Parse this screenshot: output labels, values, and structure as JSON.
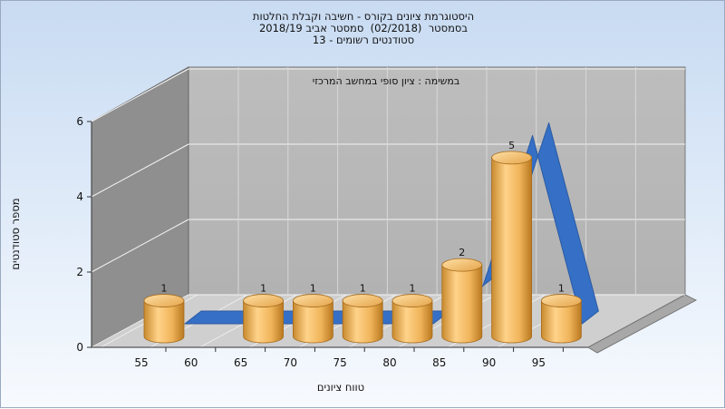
{
  "header": {
    "title_line1": "היסטוגרמת ציונים בקורס - חשיבה וקבלת החלטות",
    "title_line2": "בסמסטר  (02/2018)  סמסטר אביב 2018/19",
    "title_line3": "סטודנטים רשומים - 13"
  },
  "chart_data": {
    "type": "bar",
    "title": "היסטוגרמת ציונים בקורס - חשיבה וקבלת החלטות",
    "subtitle": "במשימה : ציון סופי במחשב המרכזי",
    "xlabel": "טווח ציונים",
    "ylabel": "מספר סטודנטים",
    "ylim": [
      0,
      6
    ],
    "y_ticks": [
      "0",
      "2",
      "4",
      "6"
    ],
    "x_ticks": [
      "55",
      "60",
      "65",
      "70",
      "75",
      "80",
      "85",
      "90",
      "95"
    ],
    "categories": [
      "55",
      "65",
      "70",
      "75",
      "80",
      "85",
      "90",
      "95"
    ],
    "values": [
      1,
      1,
      1,
      1,
      1,
      2,
      5,
      1
    ],
    "data_labels": [
      "1",
      "1",
      "1",
      "1",
      "1",
      "2",
      "5",
      "1"
    ],
    "trend_line": [
      0,
      0,
      0,
      0,
      0,
      0,
      1,
      5,
      0
    ],
    "grid": true,
    "legend": "none",
    "colors": {
      "bar": "#f0b45a",
      "bar_dark": "#c98a2e",
      "trend": "#3570c6",
      "trend_dark": "#2a5aa3",
      "back_wall": "#b5b5b5",
      "side_wall": "#8f8f8f",
      "floor": "#cfcfcf"
    }
  }
}
